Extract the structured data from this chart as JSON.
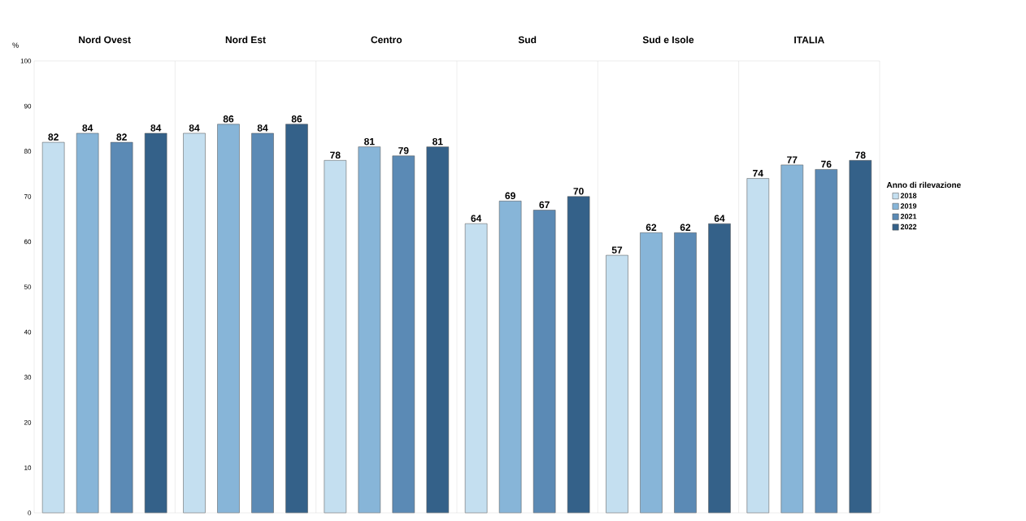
{
  "chart_data": {
    "type": "bar",
    "ylabel": "%",
    "legend_title": "Anno di rilevazione",
    "categories": [
      "Nord Ovest",
      "Nord Est",
      "Centro",
      "Sud",
      "Sud e Isole",
      "ITALIA"
    ],
    "series": [
      {
        "name": "2018",
        "color": "#c4dff0",
        "values": [
          82,
          84,
          78,
          64,
          57,
          74
        ]
      },
      {
        "name": "2019",
        "color": "#87b5d8",
        "values": [
          84,
          86,
          81,
          69,
          62,
          77
        ]
      },
      {
        "name": "2021",
        "color": "#5b8ab5",
        "values": [
          82,
          84,
          79,
          67,
          62,
          76
        ]
      },
      {
        "name": "2022",
        "color": "#346189",
        "values": [
          84,
          86,
          81,
          70,
          64,
          78
        ]
      }
    ],
    "ylim": [
      0,
      100
    ],
    "yticks": [
      0,
      10,
      20,
      30,
      40,
      50,
      60,
      70,
      80,
      90,
      100
    ],
    "data_labels": true,
    "legend": "right",
    "grid": false
  }
}
